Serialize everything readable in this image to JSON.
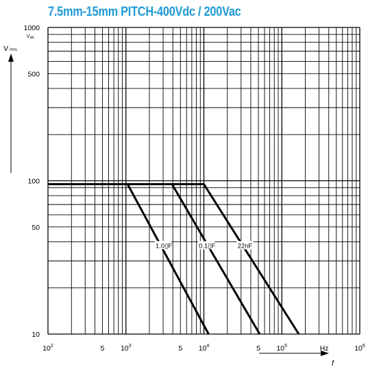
{
  "title": "7.5mm-15mm PITCH-400Vdc / 200Vac",
  "colors": {
    "title": "#1e9ad6",
    "grid": "#000000",
    "curve": "#000000"
  },
  "chart_data": {
    "type": "line",
    "title": "7.5mm-15mm PITCH-400Vdc / 200Vac",
    "x_scale": "log",
    "y_scale": "log",
    "xlim": [
      100,
      1000000
    ],
    "ylim": [
      10,
      1000
    ],
    "grid": true,
    "y_axis_label": {
      "main": "V",
      "sub": "rms"
    },
    "y_top_tick": {
      "main": "1000",
      "sub": "ac"
    },
    "y_ticks": [
      {
        "value": 500,
        "label": "500"
      },
      {
        "value": 100,
        "label": "100"
      },
      {
        "value": 50,
        "label": "50"
      },
      {
        "value": 10,
        "label": "10"
      }
    ],
    "x_ticks": [
      {
        "value": 100,
        "base": "10",
        "exp": "2"
      },
      {
        "value": 500,
        "base": "5",
        "exp": ""
      },
      {
        "value": 1000,
        "base": "10",
        "exp": "3"
      },
      {
        "value": 5000,
        "base": "5",
        "exp": ""
      },
      {
        "value": 10000,
        "base": "10",
        "exp": "4"
      },
      {
        "value": 50000,
        "base": "5",
        "exp": ""
      },
      {
        "value": 100000,
        "base": "10",
        "exp": "5"
      },
      {
        "value": 1000000,
        "base": "10",
        "exp": "6"
      }
    ],
    "x_unit_label": "Hz",
    "x_axis_label": "f",
    "series": [
      {
        "name": "1.0▯F",
        "points": [
          [
            100,
            95
          ],
          [
            1050,
            95
          ],
          [
            11500,
            10
          ]
        ],
        "label_at": [
          2400,
          38
        ]
      },
      {
        "name": "0.1▯F",
        "points": [
          [
            100,
            95
          ],
          [
            3900,
            95
          ],
          [
            52000,
            10
          ]
        ],
        "label_at": [
          8600,
          38
        ]
      },
      {
        "name": "22nF",
        "points": [
          [
            100,
            95
          ],
          [
            10000,
            95
          ],
          [
            165000,
            10
          ]
        ],
        "label_at": [
          27000,
          38
        ]
      }
    ]
  }
}
